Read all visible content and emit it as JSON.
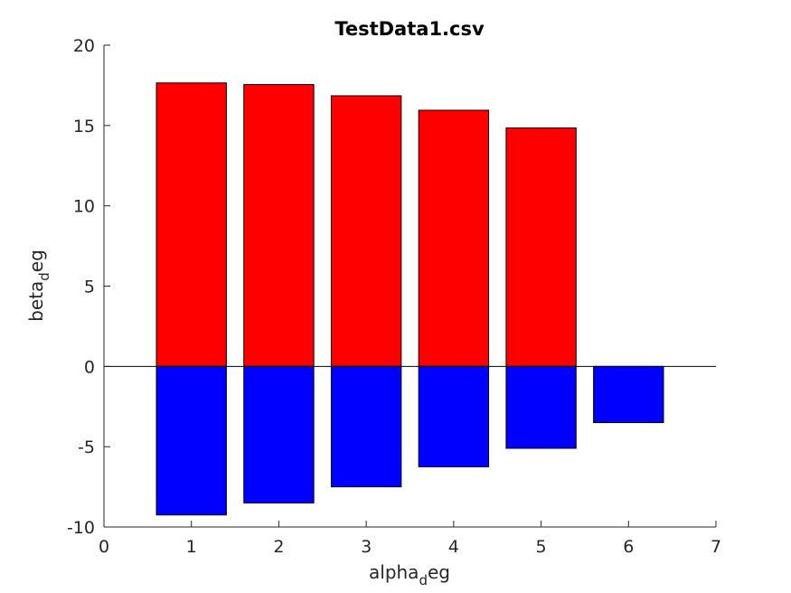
{
  "chart_data": {
    "type": "bar",
    "title": "TestData1.csv",
    "xlabel": {
      "main": "alpha",
      "sub": "d",
      "tail": "eg"
    },
    "ylabel": {
      "main": "beta",
      "sub": "d",
      "tail": "eg"
    },
    "xlim": [
      0,
      7
    ],
    "ylim": [
      -10,
      20
    ],
    "xticks": [
      0,
      1,
      2,
      3,
      4,
      5,
      6,
      7
    ],
    "yticks": [
      -10,
      -5,
      0,
      5,
      10,
      15,
      20
    ],
    "bar_width": 0.8,
    "grid": false,
    "series": [
      {
        "color": "#ff0000",
        "values": [
          {
            "x": 1,
            "y": 17.65
          },
          {
            "x": 2,
            "y": 17.55
          },
          {
            "x": 3,
            "y": 16.85
          },
          {
            "x": 4,
            "y": 15.95
          },
          {
            "x": 5,
            "y": 14.85
          }
        ]
      },
      {
        "color": "#0000ff",
        "values": [
          {
            "x": 1,
            "y": -9.25
          },
          {
            "x": 2,
            "y": -8.5
          },
          {
            "x": 3,
            "y": -7.5
          },
          {
            "x": 4,
            "y": -6.25
          },
          {
            "x": 5,
            "y": -5.1
          },
          {
            "x": 6,
            "y": -3.5
          }
        ]
      }
    ]
  }
}
